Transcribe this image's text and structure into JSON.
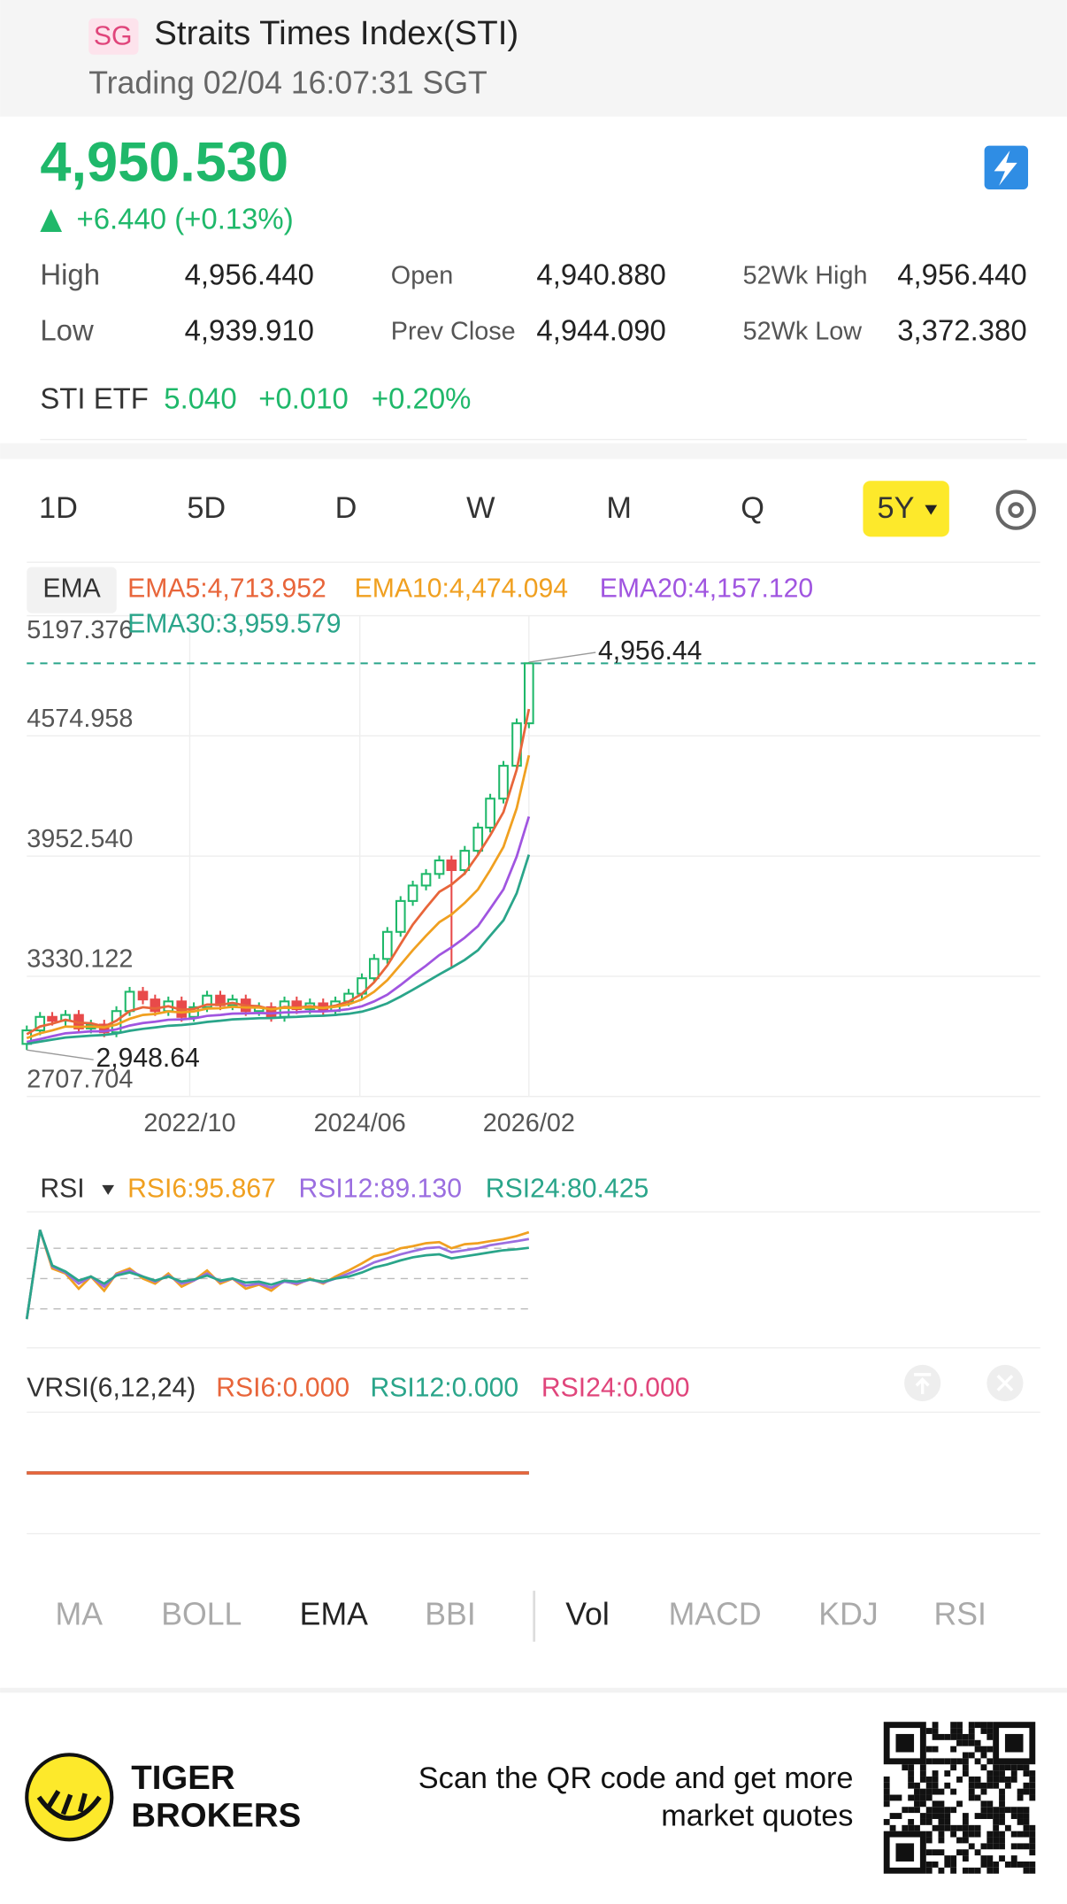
{
  "header": {
    "badge": "SG",
    "title": "Straits Times Index(STI)",
    "status": "Trading 02/04 16:07:31 SGT"
  },
  "quote": {
    "price": "4,950.530",
    "change": "+6.440 (+0.13%)",
    "stats": [
      {
        "label": "High",
        "value": "4,956.440"
      },
      {
        "label": "Open",
        "value": "4,940.880"
      },
      {
        "label": "52Wk High",
        "value": "4,956.440"
      },
      {
        "label": "Low",
        "value": "4,939.910"
      },
      {
        "label": "Prev Close",
        "value": "4,944.090"
      },
      {
        "label": "52Wk Low",
        "value": "3,372.380"
      }
    ],
    "etf": {
      "label": "STI ETF",
      "price": "5.040",
      "change": "+0.010",
      "percent": "+0.20%"
    }
  },
  "tabs": [
    "1D",
    "5D",
    "D",
    "W",
    "M",
    "Q",
    "5Y"
  ],
  "indicator_label": "EMA",
  "chart_data": [
    {
      "type": "candlestick",
      "last_price": 4950.53,
      "x": [
        2021.15,
        2021.28,
        2021.4,
        2021.53,
        2021.66,
        2021.78,
        2021.91,
        2022.03,
        2022.16,
        2022.29,
        2022.41,
        2022.54,
        2022.67,
        2022.79,
        2022.92,
        2023.05,
        2023.17,
        2023.3,
        2023.43,
        2023.55,
        2023.68,
        2023.8,
        2023.93,
        2024.06,
        2024.18,
        2024.31,
        2024.44,
        2024.56,
        2024.69,
        2024.82,
        2024.94,
        2025.07,
        2025.2,
        2025.32,
        2025.45,
        2025.58,
        2025.7,
        2025.83,
        2025.96,
        2026.08
      ],
      "open": [
        2980,
        3050,
        3120,
        3100,
        3130,
        3060,
        3080,
        3040,
        3150,
        3250,
        3210,
        3150,
        3200,
        3120,
        3170,
        3230,
        3180,
        3210,
        3150,
        3170,
        3120,
        3200,
        3160,
        3190,
        3150,
        3200,
        3240,
        3320,
        3420,
        3560,
        3720,
        3800,
        3860,
        3930,
        3880,
        3980,
        4100,
        4250,
        4420,
        4640
      ],
      "close": [
        3050,
        3120,
        3100,
        3130,
        3060,
        3080,
        3040,
        3150,
        3250,
        3210,
        3150,
        3200,
        3120,
        3170,
        3230,
        3180,
        3210,
        3150,
        3170,
        3120,
        3200,
        3160,
        3190,
        3150,
        3200,
        3240,
        3320,
        3420,
        3560,
        3720,
        3800,
        3860,
        3930,
        3880,
        3980,
        4100,
        4250,
        4420,
        4640,
        4950.53
      ],
      "high": [
        3075,
        3145,
        3145,
        3155,
        3155,
        3105,
        3105,
        3175,
        3275,
        3275,
        3235,
        3225,
        3225,
        3195,
        3255,
        3255,
        3235,
        3235,
        3195,
        3195,
        3225,
        3225,
        3215,
        3215,
        3225,
        3265,
        3345,
        3445,
        3585,
        3745,
        3825,
        3885,
        3955,
        3955,
        4005,
        4125,
        4275,
        4445,
        4665,
        4956.44
      ],
      "low": [
        2948.64,
        3025,
        3075,
        3075,
        3035,
        3035,
        3015,
        3015,
        3125,
        3185,
        3125,
        3125,
        3095,
        3095,
        3145,
        3155,
        3155,
        3125,
        3125,
        3095,
        3095,
        3135,
        3135,
        3125,
        3125,
        3175,
        3215,
        3295,
        3395,
        3535,
        3695,
        3775,
        3835,
        3372.38,
        3855,
        3955,
        4075,
        4225,
        4395,
        4615
      ],
      "up_color": "#1fb86a",
      "down_color": "#e84a4a",
      "last_color": "#2aa58a",
      "series": [
        {
          "name": "EMA5:4,713.952",
          "color": "#e8653a",
          "values": [
            3030,
            3070,
            3085,
            3105,
            3090,
            3087,
            3070,
            3100,
            3150,
            3170,
            3163,
            3175,
            3157,
            3161,
            3184,
            3183,
            3192,
            3178,
            3175,
            3157,
            3171,
            3168,
            3175,
            3167,
            3178,
            3199,
            3239,
            3299,
            3386,
            3497,
            3598,
            3685,
            3767,
            3805,
            3863,
            3960,
            4060,
            4180,
            4400,
            4713.952
          ]
        },
        {
          "name": "EMA10:4,474.094",
          "color": "#f0a020",
          "values": [
            3010,
            3035,
            3050,
            3070,
            3068,
            3070,
            3065,
            3080,
            3110,
            3130,
            3135,
            3148,
            3143,
            3148,
            3163,
            3165,
            3172,
            3168,
            3168,
            3160,
            3167,
            3166,
            3170,
            3166,
            3172,
            3185,
            3210,
            3250,
            3310,
            3390,
            3465,
            3540,
            3610,
            3650,
            3710,
            3780,
            3880,
            4000,
            4200,
            4474.094
          ]
        },
        {
          "name": "EMA20:4,157.120",
          "color": "#a055e0",
          "values": [
            2990,
            3005,
            3020,
            3035,
            3040,
            3045,
            3045,
            3055,
            3075,
            3088,
            3095,
            3105,
            3107,
            3112,
            3125,
            3130,
            3137,
            3138,
            3140,
            3138,
            3143,
            3144,
            3148,
            3148,
            3152,
            3160,
            3175,
            3200,
            3235,
            3285,
            3335,
            3385,
            3440,
            3480,
            3530,
            3590,
            3680,
            3780,
            3950,
            4157.12
          ]
        },
        {
          "name": "EMA30:3,959.579",
          "color": "#2aa58a",
          "values": [
            2980,
            2992,
            3002,
            3013,
            3018,
            3023,
            3026,
            3034,
            3048,
            3058,
            3065,
            3074,
            3078,
            3084,
            3094,
            3100,
            3107,
            3110,
            3113,
            3114,
            3118,
            3120,
            3124,
            3126,
            3130,
            3136,
            3147,
            3165,
            3190,
            3225,
            3260,
            3300,
            3340,
            3375,
            3415,
            3465,
            3540,
            3620,
            3760,
            3959.579
          ]
        }
      ],
      "annotations": [
        {
          "x": 2026.08,
          "value": 4956.44,
          "label": "4,956.44"
        },
        {
          "x": 2021.15,
          "value": 2948.64,
          "label": "2,948.64"
        }
      ],
      "xlim": [
        2021.15,
        2031.1
      ],
      "xticks": [
        {
          "value": 2022.75,
          "label": "2022/10"
        },
        {
          "value": 2024.42,
          "label": "2024/06"
        },
        {
          "value": 2026.08,
          "label": "2026/02"
        }
      ],
      "ylim": [
        2707.704,
        5197.376
      ],
      "yticks": [
        5197.376,
        4574.958,
        {
          "value": 3952.54,
          "label": "3952.540"
        },
        3330.122,
        2707.704
      ],
      "grid": true
    },
    {
      "type": "line",
      "title": "RSI",
      "ylim": [
        0,
        100
      ],
      "guides": [
        20,
        50,
        80
      ],
      "xlim": [
        2021.15,
        2031.1
      ],
      "x": [
        2021.15,
        2021.28,
        2021.4,
        2021.53,
        2021.66,
        2021.78,
        2021.91,
        2022.03,
        2022.16,
        2022.29,
        2022.41,
        2022.54,
        2022.67,
        2022.79,
        2022.92,
        2023.05,
        2023.17,
        2023.3,
        2023.43,
        2023.55,
        2023.68,
        2023.8,
        2023.93,
        2024.06,
        2024.18,
        2024.31,
        2024.44,
        2024.56,
        2024.69,
        2024.82,
        2024.94,
        2025.07,
        2025.2,
        2025.32,
        2025.45,
        2025.58,
        2025.7,
        2025.83,
        2025.96,
        2026.08
      ],
      "series": [
        {
          "name": "RSI6:95.867",
          "color": "#f0a020",
          "values": [
            10,
            98,
            60,
            55,
            40,
            52,
            38,
            55,
            60,
            50,
            45,
            55,
            42,
            48,
            58,
            45,
            50,
            40,
            44,
            38,
            48,
            44,
            50,
            45,
            52,
            58,
            65,
            72,
            75,
            80,
            82,
            85,
            86,
            80,
            84,
            85,
            87,
            89,
            92,
            95.867
          ]
        },
        {
          "name": "RSI12:89.130",
          "color": "#9b6ee0",
          "values": [
            10,
            98,
            62,
            56,
            45,
            52,
            42,
            54,
            58,
            52,
            47,
            53,
            45,
            48,
            55,
            47,
            50,
            43,
            45,
            41,
            47,
            45,
            49,
            46,
            50,
            55,
            60,
            66,
            70,
            74,
            77,
            80,
            81,
            76,
            78,
            80,
            83,
            85,
            87,
            89.13
          ]
        },
        {
          "name": "RSI24:80.425",
          "color": "#2aa58a",
          "values": [
            10,
            98,
            63,
            57,
            48,
            52,
            45,
            53,
            56,
            52,
            48,
            52,
            47,
            49,
            53,
            48,
            50,
            46,
            47,
            44,
            48,
            47,
            49,
            47,
            50,
            52,
            56,
            61,
            64,
            68,
            71,
            73,
            74,
            70,
            72,
            74,
            76,
            78,
            79,
            80.425
          ]
        }
      ]
    },
    {
      "type": "line",
      "title": "VRSI(6,12,24)",
      "ylim": [
        -100,
        100
      ],
      "xlim": [
        2021.15,
        2031.1
      ],
      "x": [
        2021.15,
        2026.08
      ],
      "series": [
        {
          "name": "RSI6:0.000",
          "color": "#e8653a",
          "values": [
            0,
            0
          ]
        },
        {
          "name": "RSI12:0.000",
          "color": "#2aa58a",
          "values": [
            0,
            0
          ]
        },
        {
          "name": "RSI24:0.000",
          "color": "#e0457b",
          "values": [
            0,
            0
          ]
        }
      ]
    }
  ],
  "indicators": {
    "main": [
      "MA",
      "BOLL",
      "EMA",
      "BBI"
    ],
    "sub": [
      "Vol",
      "MACD",
      "KDJ",
      "RSI"
    ],
    "active": [
      "EMA",
      "Vol"
    ]
  },
  "footer": {
    "brand": [
      "TIGER",
      "BROKERS"
    ],
    "cta": [
      "Scan the QR code and get more",
      "market quotes"
    ]
  }
}
